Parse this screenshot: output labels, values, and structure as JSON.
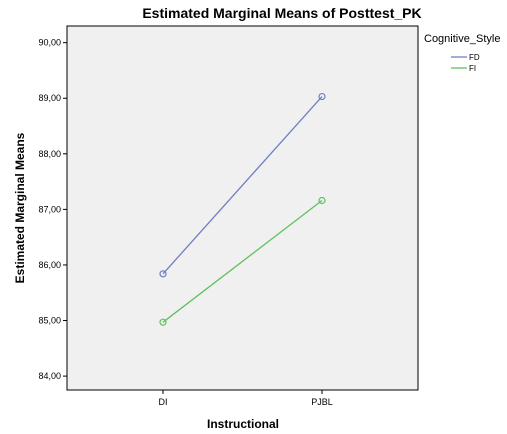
{
  "chart_data": {
    "type": "line",
    "title": "Estimated Marginal Means of Posttest_PK",
    "xlabel": "Instructional",
    "ylabel": "Estimated Marginal Means",
    "categories": [
      "DI",
      "PJBL"
    ],
    "yticks": [
      "84,00",
      "85,00",
      "86,00",
      "87,00",
      "88,00",
      "89,00",
      "90,00"
    ],
    "ylim": [
      83.75,
      90.3
    ],
    "legend_title": "Cognitive_Style",
    "legend_position": "top-right, outside plot",
    "grid": false,
    "series": [
      {
        "name": "FD",
        "color": "#6f7fc3",
        "values": [
          85.84,
          89.03
        ]
      },
      {
        "name": "FI",
        "color": "#5fc05f",
        "values": [
          84.97,
          87.16
        ]
      }
    ]
  }
}
